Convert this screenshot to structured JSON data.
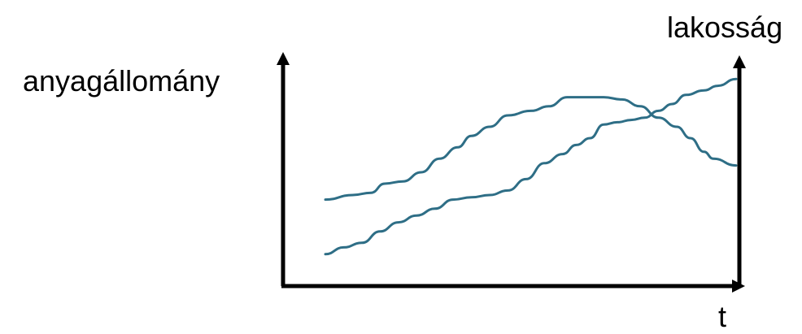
{
  "chart_data": {
    "type": "line",
    "ylabel_left": "anyagállomány",
    "ylabel_right": "lakosság",
    "xlabel": "t",
    "grid": false,
    "legend": "none",
    "axis_color": "#000000",
    "line_color": "#2e6e86",
    "series": [
      {
        "axis": "left",
        "values": [
          [
            0.0,
            0.38
          ],
          [
            0.06,
            0.4
          ],
          [
            0.1,
            0.41
          ],
          [
            0.13,
            0.45
          ],
          [
            0.17,
            0.46
          ],
          [
            0.21,
            0.5
          ],
          [
            0.25,
            0.56
          ],
          [
            0.29,
            0.61
          ],
          [
            0.32,
            0.66
          ],
          [
            0.36,
            0.7
          ],
          [
            0.4,
            0.75
          ],
          [
            0.45,
            0.77
          ],
          [
            0.49,
            0.79
          ],
          [
            0.53,
            0.83
          ],
          [
            0.57,
            0.83
          ],
          [
            0.61,
            0.83
          ],
          [
            0.65,
            0.82
          ],
          [
            0.69,
            0.79
          ],
          [
            0.73,
            0.74
          ],
          [
            0.77,
            0.7
          ],
          [
            0.8,
            0.65
          ],
          [
            0.83,
            0.59
          ],
          [
            0.85,
            0.56
          ],
          [
            0.9,
            0.53
          ]
        ]
      },
      {
        "axis": "right",
        "values": [
          [
            0.0,
            0.14
          ],
          [
            0.04,
            0.17
          ],
          [
            0.08,
            0.19
          ],
          [
            0.12,
            0.24
          ],
          [
            0.16,
            0.28
          ],
          [
            0.2,
            0.31
          ],
          [
            0.24,
            0.34
          ],
          [
            0.28,
            0.38
          ],
          [
            0.32,
            0.39
          ],
          [
            0.36,
            0.4
          ],
          [
            0.4,
            0.42
          ],
          [
            0.44,
            0.47
          ],
          [
            0.48,
            0.54
          ],
          [
            0.52,
            0.58
          ],
          [
            0.55,
            0.62
          ],
          [
            0.58,
            0.65
          ],
          [
            0.61,
            0.71
          ],
          [
            0.64,
            0.72
          ],
          [
            0.67,
            0.73
          ],
          [
            0.7,
            0.74
          ],
          [
            0.73,
            0.77
          ],
          [
            0.76,
            0.8
          ],
          [
            0.79,
            0.84
          ],
          [
            0.83,
            0.86
          ],
          [
            0.86,
            0.88
          ],
          [
            0.9,
            0.91
          ]
        ]
      }
    ]
  }
}
